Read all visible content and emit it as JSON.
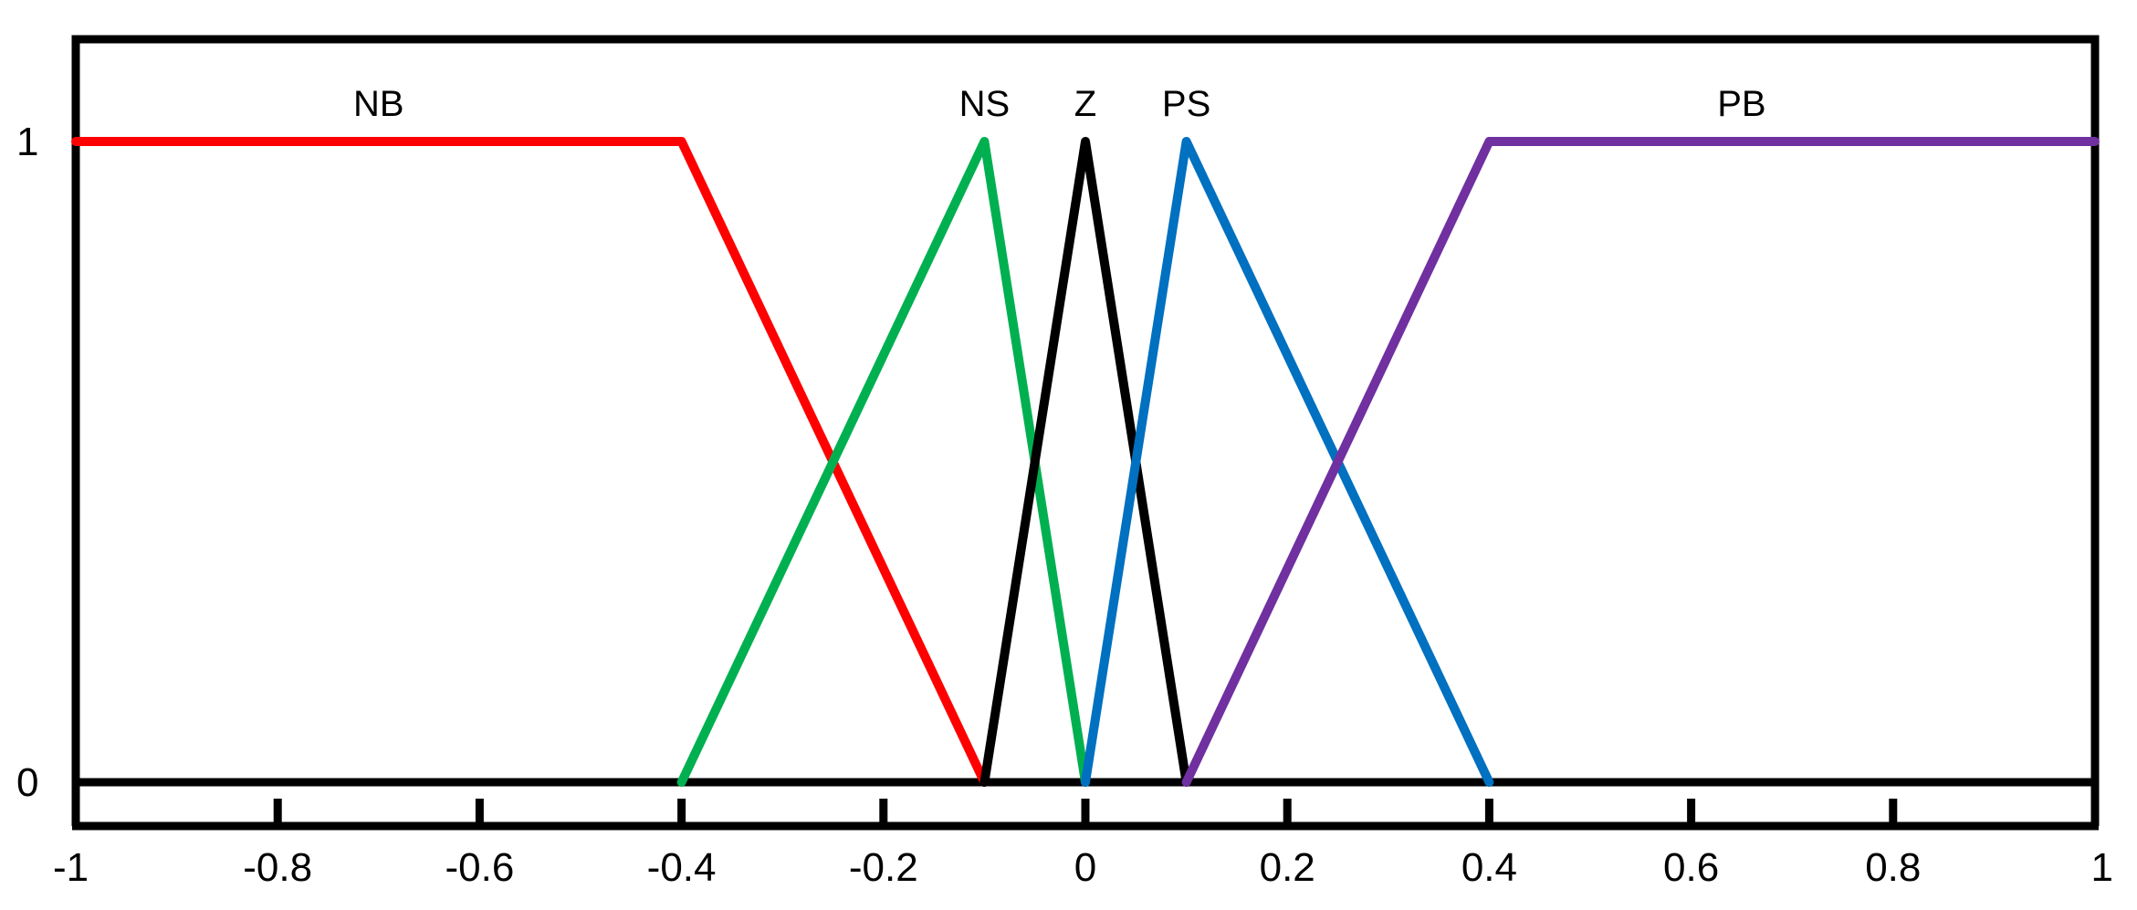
{
  "chart_data": {
    "type": "line",
    "title": "",
    "xlabel": "",
    "ylabel": "",
    "xlim": [
      -1,
      1
    ],
    "ylim": [
      0,
      1
    ],
    "grid": false,
    "x_ticks": [
      {
        "value": -1,
        "label": "-1"
      },
      {
        "value": -0.8,
        "label": "-0.8"
      },
      {
        "value": -0.6,
        "label": "-0.6"
      },
      {
        "value": -0.4,
        "label": "-0.4"
      },
      {
        "value": -0.2,
        "label": "-0.2"
      },
      {
        "value": 0,
        "label": "0"
      },
      {
        "value": 0.2,
        "label": "0.2"
      },
      {
        "value": 0.4,
        "label": "0.4"
      },
      {
        "value": 0.6,
        "label": "0.6"
      },
      {
        "value": 0.8,
        "label": "0.8"
      },
      {
        "value": 1,
        "label": "1"
      }
    ],
    "y_ticks": [
      {
        "value": 0,
        "label": "0"
      },
      {
        "value": 1,
        "label": "1"
      }
    ],
    "series": [
      {
        "name": "NB",
        "color": "#ff0000",
        "points": [
          [
            -1,
            1
          ],
          [
            -0.4,
            1
          ],
          [
            -0.1,
            0
          ]
        ],
        "label_at": [
          -0.7,
          1
        ]
      },
      {
        "name": "NS",
        "color": "#00b050",
        "points": [
          [
            -0.4,
            0
          ],
          [
            -0.1,
            1
          ],
          [
            0,
            0
          ]
        ],
        "label_at": [
          -0.1,
          1
        ]
      },
      {
        "name": "Z",
        "color": "#000000",
        "points": [
          [
            -0.1,
            0
          ],
          [
            0,
            1
          ],
          [
            0.1,
            0
          ]
        ],
        "label_at": [
          0,
          1
        ]
      },
      {
        "name": "PS",
        "color": "#0070c0",
        "points": [
          [
            0,
            0
          ],
          [
            0.1,
            1
          ],
          [
            0.4,
            0
          ]
        ],
        "label_at": [
          0.1,
          1
        ]
      },
      {
        "name": "PB",
        "color": "#7030a0",
        "points": [
          [
            0.1,
            0
          ],
          [
            0.4,
            1
          ],
          [
            1,
            1
          ]
        ],
        "label_at": [
          0.65,
          1
        ]
      }
    ]
  }
}
